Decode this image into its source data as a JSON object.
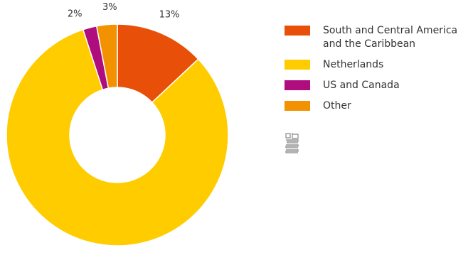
{
  "chart_data": {
    "type": "pie",
    "variant": "donut",
    "categories": [
      "South and Central America\nand the Caribbean",
      "Netherlands",
      "US and Canada",
      "Other"
    ],
    "values": [
      13,
      82,
      2,
      3
    ],
    "labels": [
      "13%",
      "82%",
      "2%",
      "3%"
    ],
    "colors": [
      "#e8500a",
      "#ffcc00",
      "#af0c7e",
      "#f39200"
    ],
    "unit": "%",
    "legend_position": "right"
  },
  "logo": {
    "icon": "cbs-logo-icon",
    "color": "#9a9a9a"
  }
}
